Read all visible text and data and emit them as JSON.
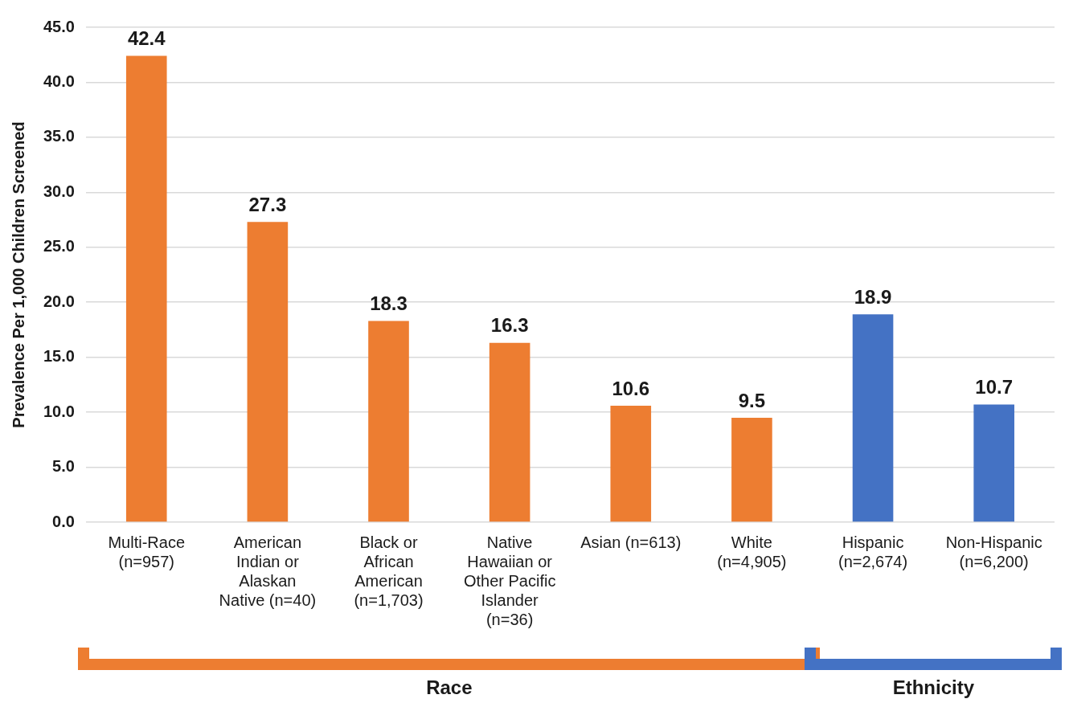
{
  "chart_data": {
    "type": "bar",
    "categories": [
      "Multi-Race (n=957)",
      "American Indian or Alaskan Native (n=40)",
      "Black or African American (n=1,703)",
      "Native Hawaiian or Other Pacific Islander (n=36)",
      "Asian (n=613)",
      "White (n=4,905)",
      "Hispanic (n=2,674)",
      "Non-Hispanic (n=6,200)"
    ],
    "values": [
      42.4,
      27.3,
      18.3,
      16.3,
      10.6,
      9.5,
      18.9,
      10.7
    ],
    "colors": [
      "#ed7d31",
      "#ed7d31",
      "#ed7d31",
      "#ed7d31",
      "#ed7d31",
      "#ed7d31",
      "#4472c4",
      "#4472c4"
    ],
    "ylabel": "Prevalence Per 1,000 Children Screened",
    "ylim": [
      0,
      45
    ],
    "yticks": [
      {
        "value": 0,
        "label": "0.0"
      },
      {
        "value": 5,
        "label": "5.0"
      },
      {
        "value": 10,
        "label": "10.0"
      },
      {
        "value": 15,
        "label": "15.0"
      },
      {
        "value": 20,
        "label": "20.0"
      },
      {
        "value": 25,
        "label": "25.0"
      },
      {
        "value": 30,
        "label": "30.0"
      },
      {
        "value": 35,
        "label": "35.0"
      },
      {
        "value": 40,
        "label": "40.0"
      },
      {
        "value": 45,
        "label": "45.0"
      }
    ],
    "grid": "y",
    "legend": false,
    "data_labels": true,
    "annotations": [
      "Race",
      "Ethnicity"
    ]
  }
}
